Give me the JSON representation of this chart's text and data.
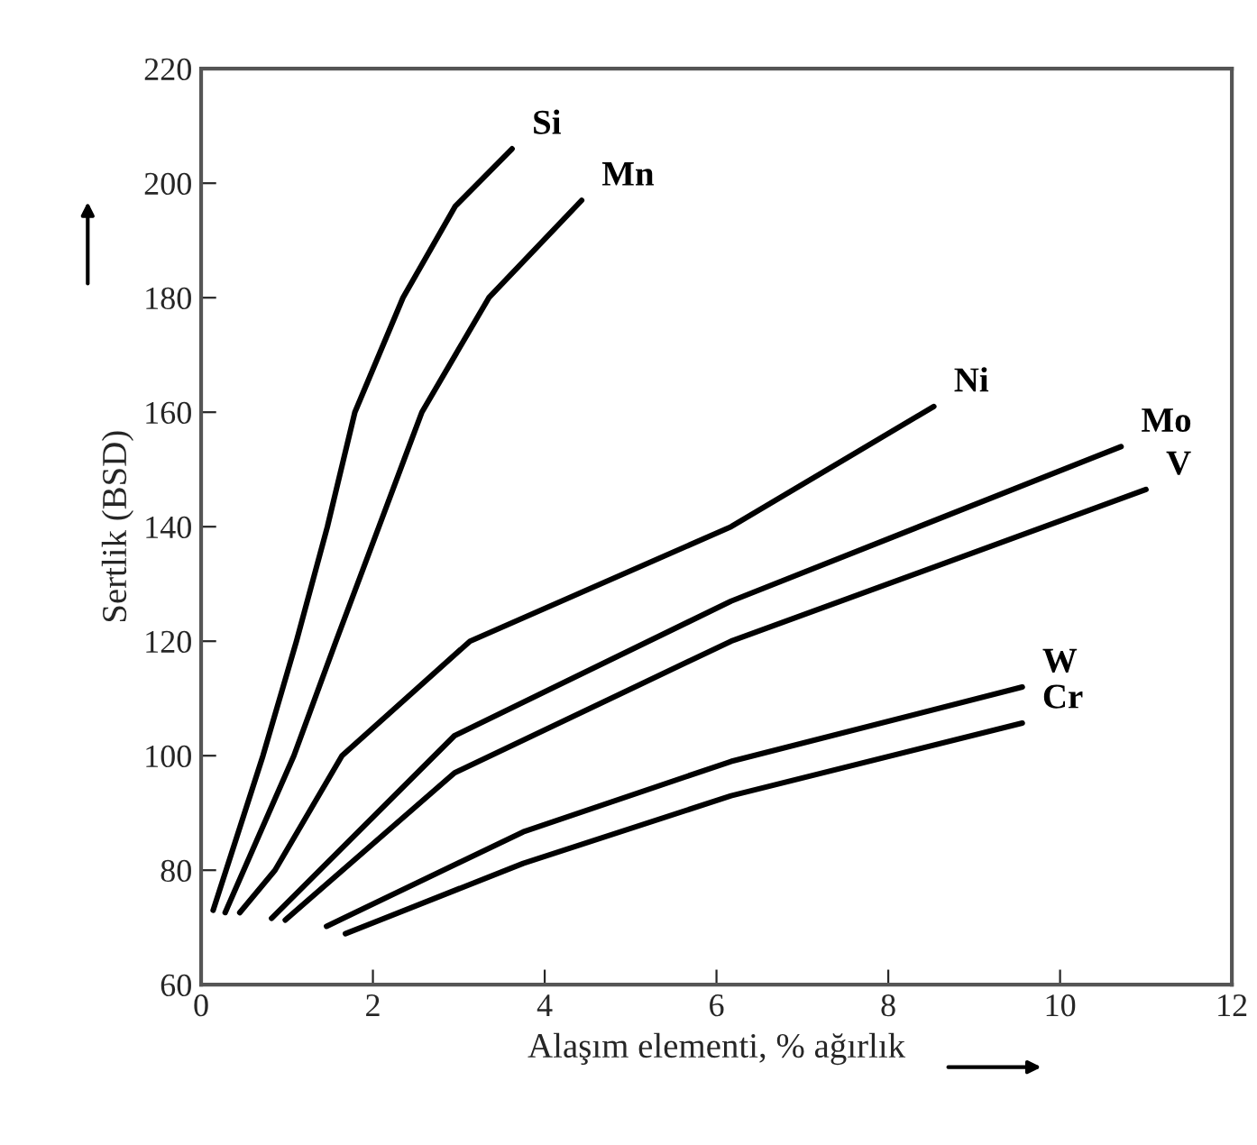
{
  "chart_data": {
    "type": "line",
    "xlabel": "Alaşım elementi, % ağırlık",
    "ylabel": "Sertlik (BSD)",
    "xlim": [
      0,
      12
    ],
    "xticks": [
      0,
      2,
      4,
      6,
      8,
      10,
      12
    ],
    "ylim": [
      60,
      220
    ],
    "yticks": [
      60,
      80,
      100,
      120,
      140,
      160,
      180,
      200,
      220
    ],
    "grid": false,
    "legend": false,
    "marker": "none",
    "line_style": "solid",
    "series": [
      {
        "name": "Si",
        "color": "#000000",
        "x": [
          0.14,
          0.72,
          1.11,
          1.47,
          1.79,
          2.35,
          2.96,
          3.62
        ],
        "values": [
          73,
          100,
          120,
          140,
          160,
          180,
          196,
          206
        ]
      },
      {
        "name": "Mn",
        "color": "#000000",
        "x": [
          0.28,
          1.08,
          1.57,
          2.07,
          2.57,
          3.35,
          4.43
        ],
        "values": [
          72.6,
          100,
          120,
          140,
          160,
          180,
          197
        ]
      },
      {
        "name": "Ni",
        "color": "#000000",
        "x": [
          0.45,
          0.86,
          1.64,
          3.13,
          5.26,
          6.17,
          8.53
        ],
        "values": [
          72.6,
          80,
          100,
          120,
          134,
          140,
          161
        ]
      },
      {
        "name": "Mo",
        "color": "#000000",
        "x": [
          0.82,
          2.95,
          6.17,
          10.71
        ],
        "values": [
          71.6,
          103.5,
          127,
          154
        ]
      },
      {
        "name": "V",
        "color": "#000000",
        "x": [
          0.98,
          2.95,
          6.17,
          11.0
        ],
        "values": [
          71.3,
          97,
          120,
          146.5
        ]
      },
      {
        "name": "W",
        "color": "#000000",
        "x": [
          1.46,
          3.75,
          6.17,
          9.56
        ],
        "values": [
          70.2,
          86.7,
          99,
          112
        ]
      },
      {
        "name": "Cr",
        "color": "#000000",
        "x": [
          1.68,
          3.75,
          6.17,
          9.56
        ],
        "values": [
          68.9,
          81.2,
          93,
          105.7
        ]
      }
    ]
  }
}
